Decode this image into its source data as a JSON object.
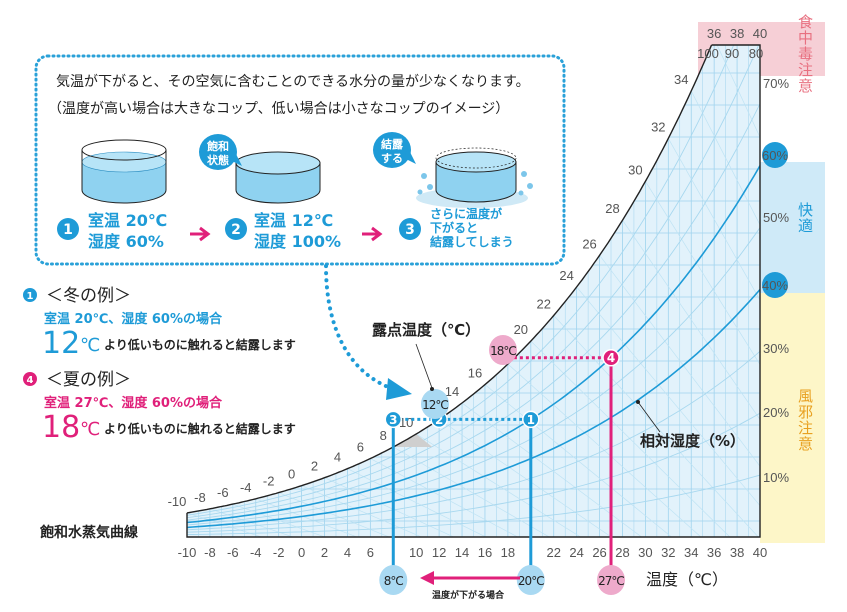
{
  "intro_box": {
    "line1": "気温が下がると、その空気に含むことのできる水分の量が少なくなります。",
    "line2": "（温度が高い場合は大きなコップ、低い場合は小さなコップのイメージ）",
    "bubble_saturated": [
      "飽和",
      "状態"
    ],
    "bubble_condense": [
      "結露",
      "する"
    ],
    "steps": [
      {
        "num": "1",
        "lines": [
          "室温 20℃",
          "湿度 60%"
        ]
      },
      {
        "num": "2",
        "lines": [
          "室温 12℃",
          "湿度 100%"
        ]
      },
      {
        "num": "3",
        "lines": [
          "さらに温度が",
          "下がると",
          "結露してしまう"
        ]
      }
    ]
  },
  "examples": {
    "winter": {
      "num": "1",
      "title": "＜冬の例＞",
      "condition": "室温 20℃、湿度 60%の場合",
      "big": "12",
      "unit": "℃",
      "text": "より低いものに触れると結露します"
    },
    "summer": {
      "num": "4",
      "title": "＜夏の例＞",
      "condition": "室温 27℃、湿度 60%の場合",
      "big": "18",
      "unit": "℃",
      "text": "より低いものに触れると結露します"
    }
  },
  "labels": {
    "saturation_curve": "飽和水蒸気曲線",
    "dew_point": "露点温度（℃）",
    "relative_humidity": "相対湿度（%）",
    "temperature_axis": "温度（℃）",
    "temp_drop": "温度が下がる場合"
  },
  "zones": {
    "food_poisoning": "食中毒注意",
    "comfortable": "快適",
    "cold_caution": "風邪注意"
  },
  "colors": {
    "blue": "#1e9bd7",
    "pink": "#e0207a",
    "chart_fill": "#e2f2fb",
    "zone_pink": "#f6cfd6",
    "zone_blue": "#cfeaf8",
    "zone_yellow": "#fdf6c8"
  },
  "chart_data": {
    "type": "line",
    "xlabel": "温度（℃）",
    "xlim": [
      -10,
      40
    ],
    "x_tick_labels": [
      "-10",
      "-8",
      "-6",
      "-4",
      "-2",
      "0",
      "2",
      "4",
      "6",
      "10",
      "12",
      "14",
      "16",
      "18",
      "22",
      "24",
      "26",
      "28",
      "30",
      "32",
      "34",
      "36",
      "38",
      "40"
    ],
    "saturation_curve_labels": [
      "-10",
      "-8",
      "-6",
      "-4",
      "-2",
      "0",
      "2",
      "4",
      "6",
      "8",
      "10",
      "14",
      "16",
      "20",
      "22",
      "24",
      "26",
      "28",
      "30",
      "32",
      "34"
    ],
    "top_labels": [
      "36",
      "38",
      "40"
    ],
    "top_rh_labels": [
      "100",
      "90",
      "80"
    ],
    "rh_curves": [
      10,
      20,
      30,
      40,
      50,
      60,
      70,
      80,
      90
    ],
    "highlight_rh": [
      40,
      60
    ],
    "right_rh_labels": [
      "70%",
      "60%",
      "50%",
      "40%",
      "30%",
      "20%",
      "10%"
    ],
    "markers": [
      {
        "id": "1",
        "temp": 20,
        "rh": 60,
        "color": "blue"
      },
      {
        "id": "2",
        "temp": 12,
        "rh": 100,
        "color": "blue"
      },
      {
        "id": "3",
        "temp": 8,
        "rh": 100,
        "color": "blue"
      },
      {
        "id": "4",
        "temp": 27,
        "rh": 60,
        "color": "pink"
      }
    ],
    "dew_point_badges": [
      "12℃",
      "18℃"
    ],
    "axis_badges": [
      "8℃",
      "20℃",
      "27℃"
    ]
  }
}
